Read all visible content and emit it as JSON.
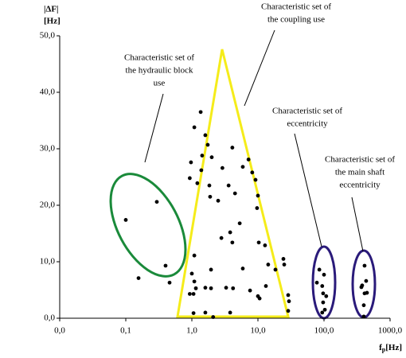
{
  "chart_data": {
    "type": "scatter",
    "ylabel": [
      "|ΔF|",
      "[Hz]"
    ],
    "xlabel": {
      "main": "f",
      "sub": "p",
      "unit": "[Hz]"
    },
    "xscale": "log",
    "xlim": [
      0.01,
      1000
    ],
    "xticks": [
      {
        "value": 0.01,
        "label": "0,0"
      },
      {
        "value": 0.1,
        "label": "0,1"
      },
      {
        "value": 1,
        "label": "1,0"
      },
      {
        "value": 10,
        "label": "10,0"
      },
      {
        "value": 100,
        "label": "100,0"
      },
      {
        "value": 1000,
        "label": "1000,0"
      }
    ],
    "ylim": [
      0,
      50
    ],
    "yticks": [
      {
        "value": 0,
        "label": "0,0"
      },
      {
        "value": 10,
        "label": "10,0"
      },
      {
        "value": 20,
        "label": "20,0"
      },
      {
        "value": 30,
        "label": "30,0"
      },
      {
        "value": 40,
        "label": "40,0"
      },
      {
        "value": 50,
        "label": "50,0"
      }
    ],
    "color": "#000000",
    "x": [
      0.1,
      0.156,
      0.295,
      0.4,
      0.46,
      1.36,
      1.09,
      1.74,
      1.6,
      1.43,
      0.97,
      2.0,
      1.39,
      2.9,
      4.1,
      5.9,
      7.2,
      8.2,
      9.2,
      10,
      0.93,
      1.21,
      1.84,
      3.6,
      4.5,
      1.89,
      2.5,
      3.8,
      5.3,
      9.7,
      12.8,
      10.3,
      24.3,
      25,
      18.4,
      1.09,
      1.0,
      1.95,
      2.8,
      4.1,
      5.9,
      3.3,
      1.95,
      4.2,
      7.6,
      10,
      10.6,
      13.2,
      14.3,
      1.06,
      1.09,
      1.15,
      1.6,
      0.93,
      1.6,
      1.06,
      2.1,
      3.8,
      28.7,
      29.5,
      28.7,
      78,
      85,
      94,
      97,
      100,
      103,
      108,
      94,
      97,
      368,
      378,
      400,
      411,
      434,
      447,
      411,
      400
    ],
    "values": [
      17.4,
      7.1,
      20.6,
      9.3,
      6.3,
      36.5,
      33.8,
      30.7,
      32.4,
      28.8,
      27.6,
      28.5,
      26.2,
      26.6,
      30.2,
      26.8,
      28.1,
      25.8,
      24.5,
      21.7,
      24.8,
      23.9,
      23.5,
      23.5,
      22.1,
      21.5,
      20.8,
      15.2,
      16.8,
      19.5,
      12.9,
      13.4,
      10.5,
      9.5,
      8.6,
      11.1,
      7.9,
      8.6,
      14.2,
      13.4,
      8.8,
      5.4,
      5.3,
      5.3,
      4.9,
      3.9,
      3.5,
      5.7,
      9.5,
      4.3,
      6.5,
      5.3,
      5.4,
      4.3,
      1.0,
      0.9,
      0.2,
      1.0,
      4.1,
      3.0,
      1.3,
      6.3,
      8.6,
      5.7,
      4.4,
      7.7,
      1.5,
      3.9,
      1.0,
      2.8,
      5.5,
      5.8,
      0.3,
      4.4,
      6.6,
      4.5,
      9.3,
      2.3
    ],
    "annotations": [
      [
        "Characteristic set of",
        "the hydraulic block",
        "use"
      ],
      [
        "Characteristic set of",
        "the coupling use"
      ],
      [
        "Characteristic set of",
        "eccentricity"
      ],
      [
        "Characteristic set of",
        "the main shaft",
        "eccentricity"
      ]
    ]
  }
}
